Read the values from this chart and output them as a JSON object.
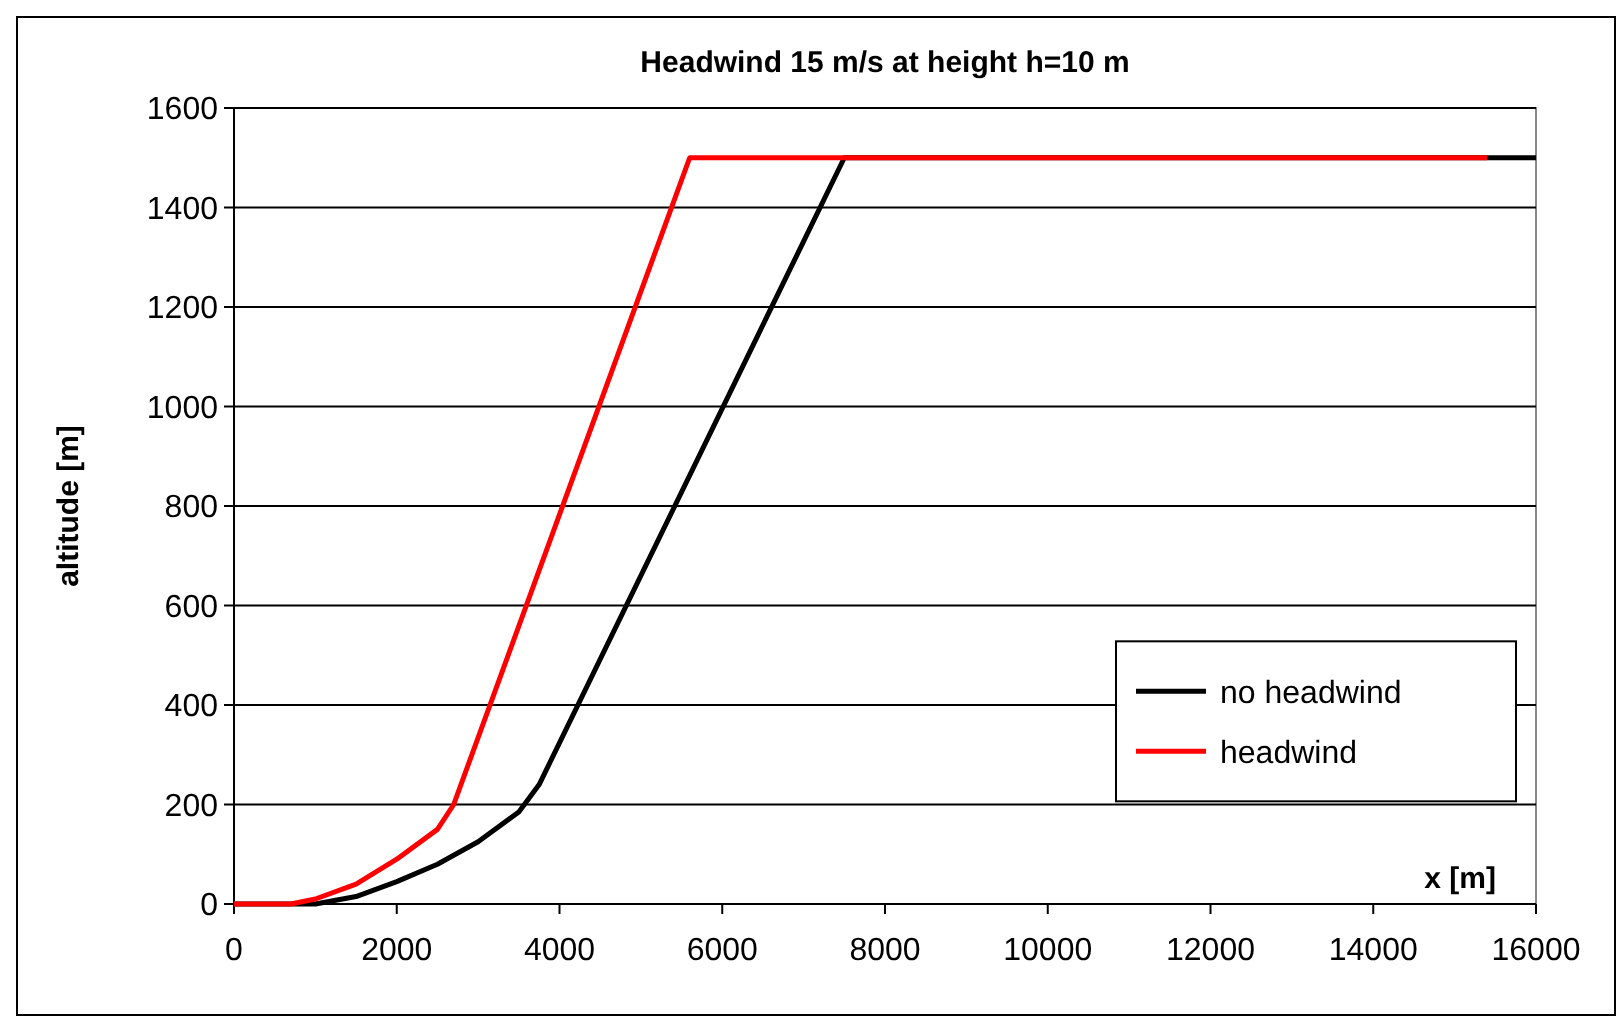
{
  "chart_data": {
    "type": "line",
    "title": "Headwind 15 m/s at height h=10 m",
    "xlabel": "x [m]",
    "ylabel": "altitude [m]",
    "xlim": [
      0,
      16000
    ],
    "xticks": [
      0,
      2000,
      4000,
      6000,
      8000,
      10000,
      12000,
      14000,
      16000
    ],
    "ylim": [
      0,
      1600
    ],
    "yticks": [
      0,
      200,
      400,
      600,
      800,
      1000,
      1200,
      1400,
      1600
    ],
    "grid": "y",
    "legend": "right",
    "marker": "none",
    "line_style": "solid",
    "series": [
      {
        "name": "no headwind",
        "color": "#000000",
        "x": [
          0,
          1000,
          1500,
          2000,
          2500,
          3000,
          3500,
          3750,
          7500,
          16000
        ],
        "values": [
          0,
          0,
          15,
          45,
          80,
          125,
          185,
          240,
          1500,
          1500
        ]
      },
      {
        "name": "headwind",
        "color": "#ff0000",
        "x": [
          0,
          700,
          1000,
          1500,
          2000,
          2500,
          2700,
          5600,
          15400
        ],
        "values": [
          0,
          0,
          10,
          40,
          90,
          150,
          200,
          1500,
          1500
        ]
      }
    ]
  }
}
